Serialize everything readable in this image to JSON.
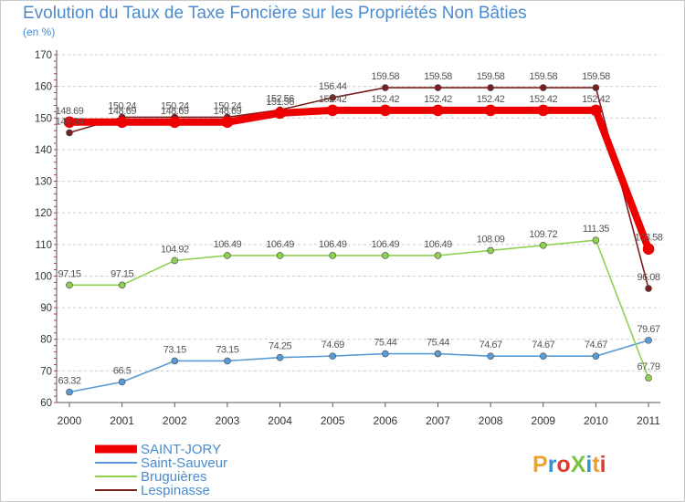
{
  "chart_data": {
    "type": "line",
    "title": "Evolution du Taux de Taxe Foncière sur les Propriétés Non Bâties",
    "ylabel": "(en %)",
    "ylim": [
      60,
      170
    ],
    "yticks": [
      60,
      70,
      80,
      90,
      100,
      110,
      120,
      130,
      140,
      150,
      160,
      170
    ],
    "categories": [
      "2000",
      "2001",
      "2002",
      "2003",
      "2004",
      "2005",
      "2006",
      "2007",
      "2008",
      "2009",
      "2010",
      "2011"
    ],
    "series": [
      {
        "name": "SAINT-JORY",
        "color": "#ee0000",
        "values": [
          148.69,
          148.69,
          148.69,
          148.69,
          151.56,
          152.42,
          152.42,
          152.42,
          152.42,
          152.42,
          152.42,
          108.58
        ],
        "labels": [
          "148.69",
          "148.69",
          "148.69",
          "148.69",
          "151.56",
          "152.42",
          "152.42",
          "152.42",
          "152.42",
          "152.42",
          "152.42",
          "108.58"
        ]
      },
      {
        "name": "Saint-Sauveur",
        "color": "#5b9bd5",
        "values": [
          63.32,
          66.5,
          73.15,
          73.15,
          74.25,
          74.69,
          75.44,
          75.44,
          74.67,
          74.67,
          74.67,
          79.67
        ],
        "labels": [
          "63.32",
          "66.5",
          "73.15",
          "73.15",
          "74.25",
          "74.69",
          "75.44",
          "75.44",
          "74.67",
          "74.67",
          "74.67",
          "79.67"
        ]
      },
      {
        "name": "Bruguières",
        "color": "#8fd14f",
        "values": [
          97.15,
          97.15,
          104.92,
          106.49,
          106.49,
          106.49,
          106.49,
          106.49,
          108.09,
          109.72,
          111.35,
          67.79
        ],
        "labels": [
          "97.15",
          "97.15",
          "104.92",
          "106.49",
          "106.49",
          "106.49",
          "106.49",
          "106.49",
          "108.09",
          "109.72",
          "111.35",
          "67.79"
        ]
      },
      {
        "name": "Lespinasse",
        "color": "#7a1f1f",
        "values": [
          145.34,
          150.24,
          150.24,
          150.24,
          152.56,
          156.44,
          159.58,
          159.58,
          159.58,
          159.58,
          159.58,
          96.08
        ],
        "labels": [
          "145.34",
          "150.24",
          "150.24",
          "150.24",
          "152.56",
          "156.44",
          "159.58",
          "159.58",
          "159.58",
          "159.58",
          "159.58",
          "96.08"
        ]
      }
    ],
    "legend_position": "bottom-left",
    "grid": "horizontal-dashed"
  },
  "brand": {
    "text": "ProXiti",
    "colors": [
      "#f0a030",
      "#3a8fd8",
      "#e23a2a",
      "#7cc242",
      "#3a8fd8",
      "#f0a030",
      "#e23a2a"
    ]
  }
}
